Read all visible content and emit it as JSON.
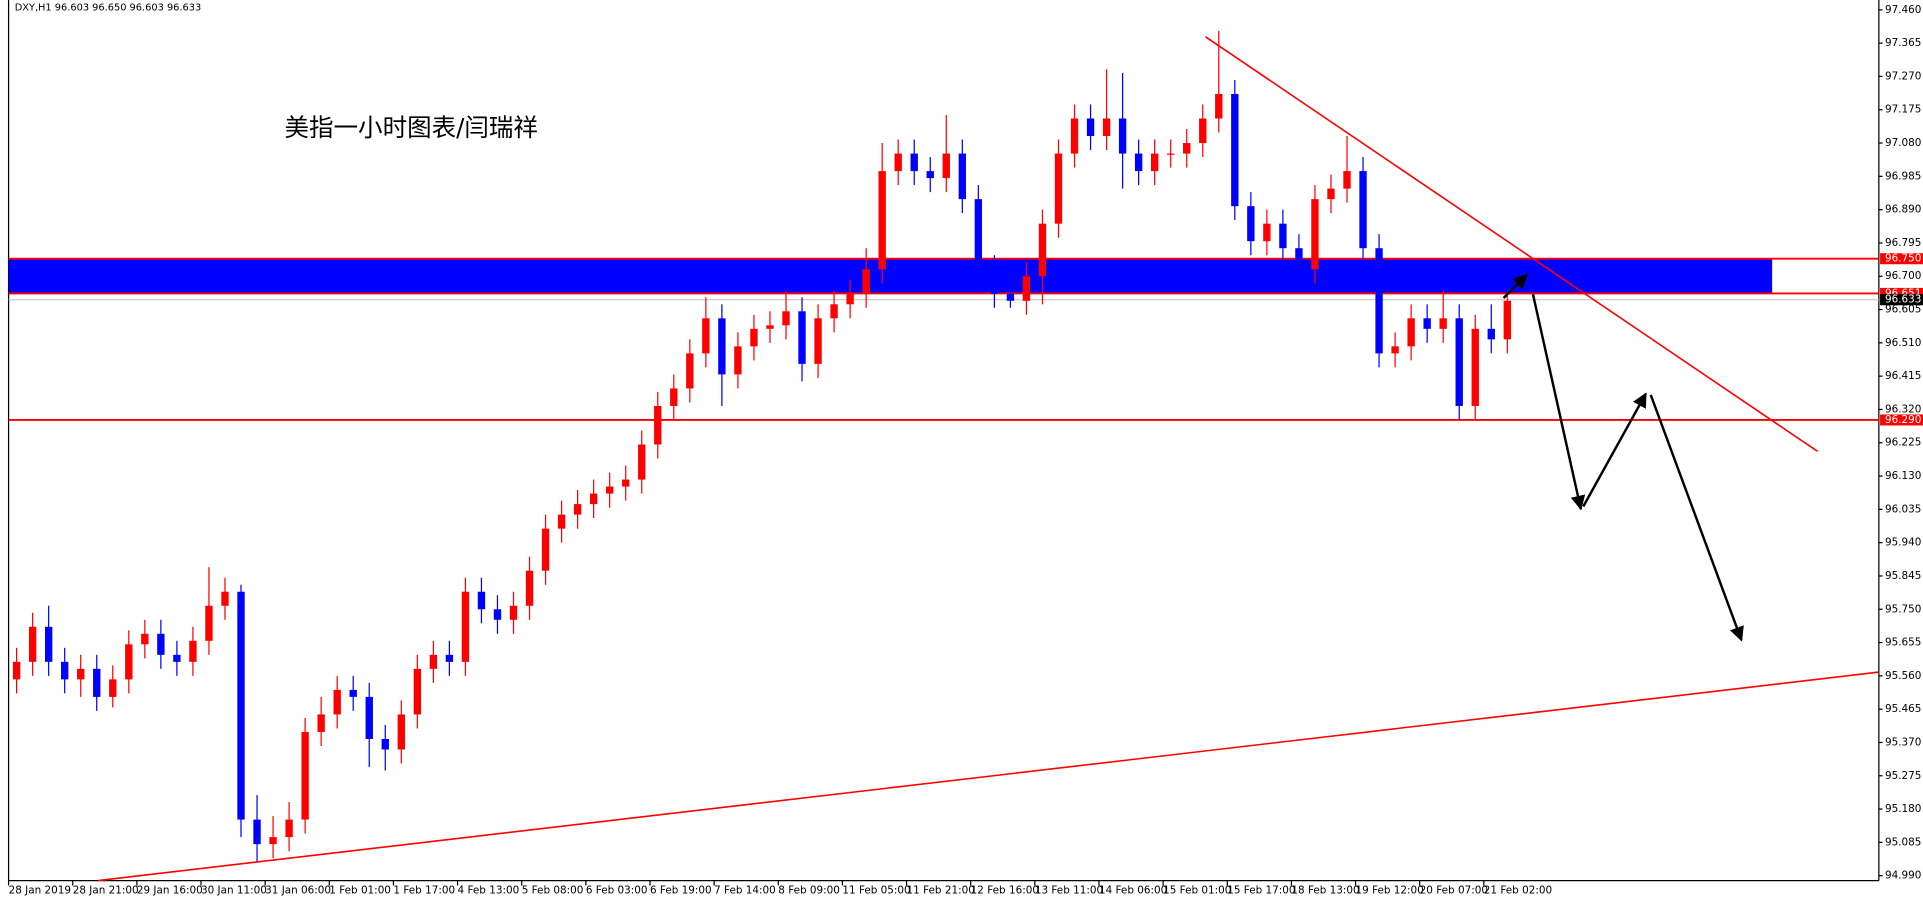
{
  "chart_data": {
    "type": "candlestick",
    "header": "DXY,H1  96.603 96.650 96.603 96.633",
    "title": "美指一小时图表/闫瑞祥",
    "up_color": "#ff0000",
    "down_color": "#0000ff",
    "ylim": [
      94.99,
      97.46
    ],
    "yticks": [
      {
        "value": 97.46,
        "label": "97.460"
      },
      {
        "value": 97.365,
        "label": "97.365"
      },
      {
        "value": 97.27,
        "label": "97.270"
      },
      {
        "value": 97.175,
        "label": "97.175"
      },
      {
        "value": 97.08,
        "label": "97.080"
      },
      {
        "value": 96.985,
        "label": "96.985"
      },
      {
        "value": 96.89,
        "label": "96.890"
      },
      {
        "value": 96.795,
        "label": "96.795"
      },
      {
        "value": 96.7,
        "label": "96.700"
      },
      {
        "value": 96.605,
        "label": "96.605"
      },
      {
        "value": 96.51,
        "label": "96.510"
      },
      {
        "value": 96.415,
        "label": "96.415"
      },
      {
        "value": 96.32,
        "label": "96.320"
      },
      {
        "value": 96.225,
        "label": "96.225"
      },
      {
        "value": 96.13,
        "label": "96.130"
      },
      {
        "value": 96.035,
        "label": "96.035"
      },
      {
        "value": 95.94,
        "label": "95.940"
      },
      {
        "value": 95.845,
        "label": "95.845"
      },
      {
        "value": 95.75,
        "label": "95.750"
      },
      {
        "value": 95.655,
        "label": "95.655"
      },
      {
        "value": 95.56,
        "label": "95.560"
      },
      {
        "value": 95.465,
        "label": "95.465"
      },
      {
        "value": 95.37,
        "label": "95.370"
      },
      {
        "value": 95.275,
        "label": "95.275"
      },
      {
        "value": 95.18,
        "label": "95.180"
      },
      {
        "value": 95.085,
        "label": "95.085"
      },
      {
        "value": 94.99,
        "label": "94.990"
      }
    ],
    "x_labels": [
      "28 Jan 2019",
      "28 Jan 21:00",
      "29 Jan 16:00",
      "30 Jan 11:00",
      "31 Jan 06:00",
      "1 Feb 01:00",
      "1 Feb 17:00",
      "4 Feb 13:00",
      "5 Feb 08:00",
      "6 Feb 03:00",
      "6 Feb 19:00",
      "7 Feb 14:00",
      "8 Feb 09:00",
      "11 Feb 05:00",
      "11 Feb 21:00",
      "12 Feb 16:00",
      "13 Feb 11:00",
      "14 Feb 06:00",
      "15 Feb 01:00",
      "15 Feb 17:00",
      "18 Feb 13:00",
      "19 Feb 12:00",
      "20 Feb 07:00",
      "21 Feb 02:00"
    ],
    "zone": {
      "top": 96.75,
      "bottom": 96.651,
      "color": "#0000ff"
    },
    "levels": [
      {
        "value": 96.75,
        "label": "96.750",
        "color": "#ff0000"
      },
      {
        "value": 96.651,
        "label": "96.651",
        "color": "#ff0000"
      },
      {
        "value": 96.633,
        "label": "96.633",
        "color": "#000000"
      },
      {
        "value": 96.29,
        "label": "96.290",
        "color": "#ff0000"
      }
    ],
    "open": [
      95.55,
      95.6,
      95.7,
      95.6,
      95.55,
      95.58,
      95.5,
      95.55,
      95.65,
      95.68,
      95.62,
      95.6,
      95.66,
      95.76,
      95.8,
      95.15,
      95.08,
      95.1,
      95.15,
      95.4,
      95.45,
      95.52,
      95.5,
      95.38,
      95.35,
      95.45,
      95.58,
      95.62,
      95.6,
      95.8,
      95.75,
      95.72,
      95.76,
      95.86,
      95.98,
      96.02,
      96.05,
      96.08,
      96.1,
      96.12,
      96.22,
      96.33,
      96.38,
      96.48,
      96.58,
      96.42,
      96.5,
      96.55,
      96.56,
      96.6,
      96.45,
      96.58,
      96.62,
      96.65,
      96.72,
      97.0,
      97.05,
      97.0,
      96.98,
      97.05,
      96.92,
      96.72,
      96.65,
      96.63,
      96.7,
      96.85,
      97.05,
      97.15,
      97.1,
      97.15,
      97.05,
      97.0,
      97.05,
      97.05,
      97.08,
      97.15,
      97.22,
      96.9,
      96.8,
      96.85,
      96.78,
      96.72,
      96.92,
      96.95,
      97.0,
      96.78,
      96.48,
      96.5,
      96.58,
      96.55,
      96.58,
      96.33,
      96.55,
      96.52
    ],
    "high": [
      95.64,
      95.74,
      95.76,
      95.64,
      95.62,
      95.62,
      95.59,
      95.69,
      95.72,
      95.72,
      95.66,
      95.7,
      95.87,
      95.84,
      95.82,
      95.22,
      95.16,
      95.2,
      95.44,
      95.5,
      95.56,
      95.56,
      95.54,
      95.42,
      95.49,
      95.62,
      95.66,
      95.66,
      95.84,
      95.84,
      95.79,
      95.8,
      95.9,
      96.02,
      96.06,
      96.09,
      96.12,
      96.14,
      96.16,
      96.26,
      96.37,
      96.42,
      96.52,
      96.64,
      96.62,
      96.54,
      96.59,
      96.6,
      96.66,
      96.64,
      96.62,
      96.66,
      96.69,
      96.78,
      97.08,
      97.09,
      97.09,
      97.04,
      97.16,
      97.09,
      96.96,
      96.76,
      96.69,
      96.74,
      96.89,
      97.09,
      97.19,
      97.19,
      97.29,
      97.28,
      97.09,
      97.09,
      97.09,
      97.12,
      97.19,
      97.4,
      97.26,
      96.94,
      96.89,
      96.89,
      96.82,
      96.96,
      96.99,
      97.1,
      97.04,
      96.82,
      96.54,
      96.62,
      96.62,
      96.66,
      96.62,
      96.59,
      96.62,
      96.65
    ],
    "low": [
      95.51,
      95.56,
      95.56,
      95.51,
      95.5,
      95.46,
      95.47,
      95.51,
      95.61,
      95.58,
      95.56,
      95.56,
      95.62,
      95.72,
      95.1,
      95.03,
      95.04,
      95.06,
      95.11,
      95.36,
      95.41,
      95.46,
      95.3,
      95.29,
      95.31,
      95.41,
      95.54,
      95.56,
      95.56,
      95.71,
      95.68,
      95.68,
      95.72,
      95.82,
      95.94,
      95.98,
      96.01,
      96.04,
      96.06,
      96.08,
      96.18,
      96.29,
      96.34,
      96.44,
      96.33,
      96.38,
      96.46,
      96.51,
      96.52,
      96.4,
      96.41,
      96.54,
      96.58,
      96.61,
      96.68,
      96.96,
      96.96,
      96.94,
      96.94,
      96.88,
      96.68,
      96.61,
      96.61,
      96.59,
      96.62,
      96.81,
      97.01,
      97.06,
      97.06,
      96.95,
      96.96,
      96.96,
      97.01,
      97.01,
      97.04,
      97.11,
      96.86,
      96.76,
      96.76,
      96.74,
      96.68,
      96.68,
      96.88,
      96.91,
      96.74,
      96.44,
      96.44,
      96.46,
      96.51,
      96.51,
      96.29,
      96.29,
      96.48,
      96.48
    ],
    "close": [
      95.6,
      95.7,
      95.6,
      95.55,
      95.58,
      95.5,
      95.55,
      95.65,
      95.68,
      95.62,
      95.6,
      95.66,
      95.76,
      95.8,
      95.15,
      95.08,
      95.1,
      95.15,
      95.4,
      95.45,
      95.52,
      95.5,
      95.38,
      95.35,
      95.45,
      95.58,
      95.62,
      95.6,
      95.8,
      95.75,
      95.72,
      95.76,
      95.86,
      95.98,
      96.02,
      96.05,
      96.08,
      96.1,
      96.12,
      96.22,
      96.33,
      96.38,
      96.48,
      96.58,
      96.42,
      96.5,
      96.55,
      96.56,
      96.6,
      96.45,
      96.58,
      96.62,
      96.65,
      96.72,
      97.0,
      97.05,
      97.0,
      96.98,
      97.05,
      96.92,
      96.72,
      96.65,
      96.63,
      96.7,
      96.85,
      97.05,
      97.15,
      97.1,
      97.15,
      97.05,
      97.0,
      97.05,
      97.05,
      97.08,
      97.15,
      97.22,
      96.9,
      96.8,
      96.85,
      96.78,
      96.72,
      96.92,
      96.95,
      97.0,
      96.78,
      96.48,
      96.5,
      96.58,
      96.55,
      96.58,
      96.33,
      96.55,
      96.52,
      96.63
    ]
  }
}
